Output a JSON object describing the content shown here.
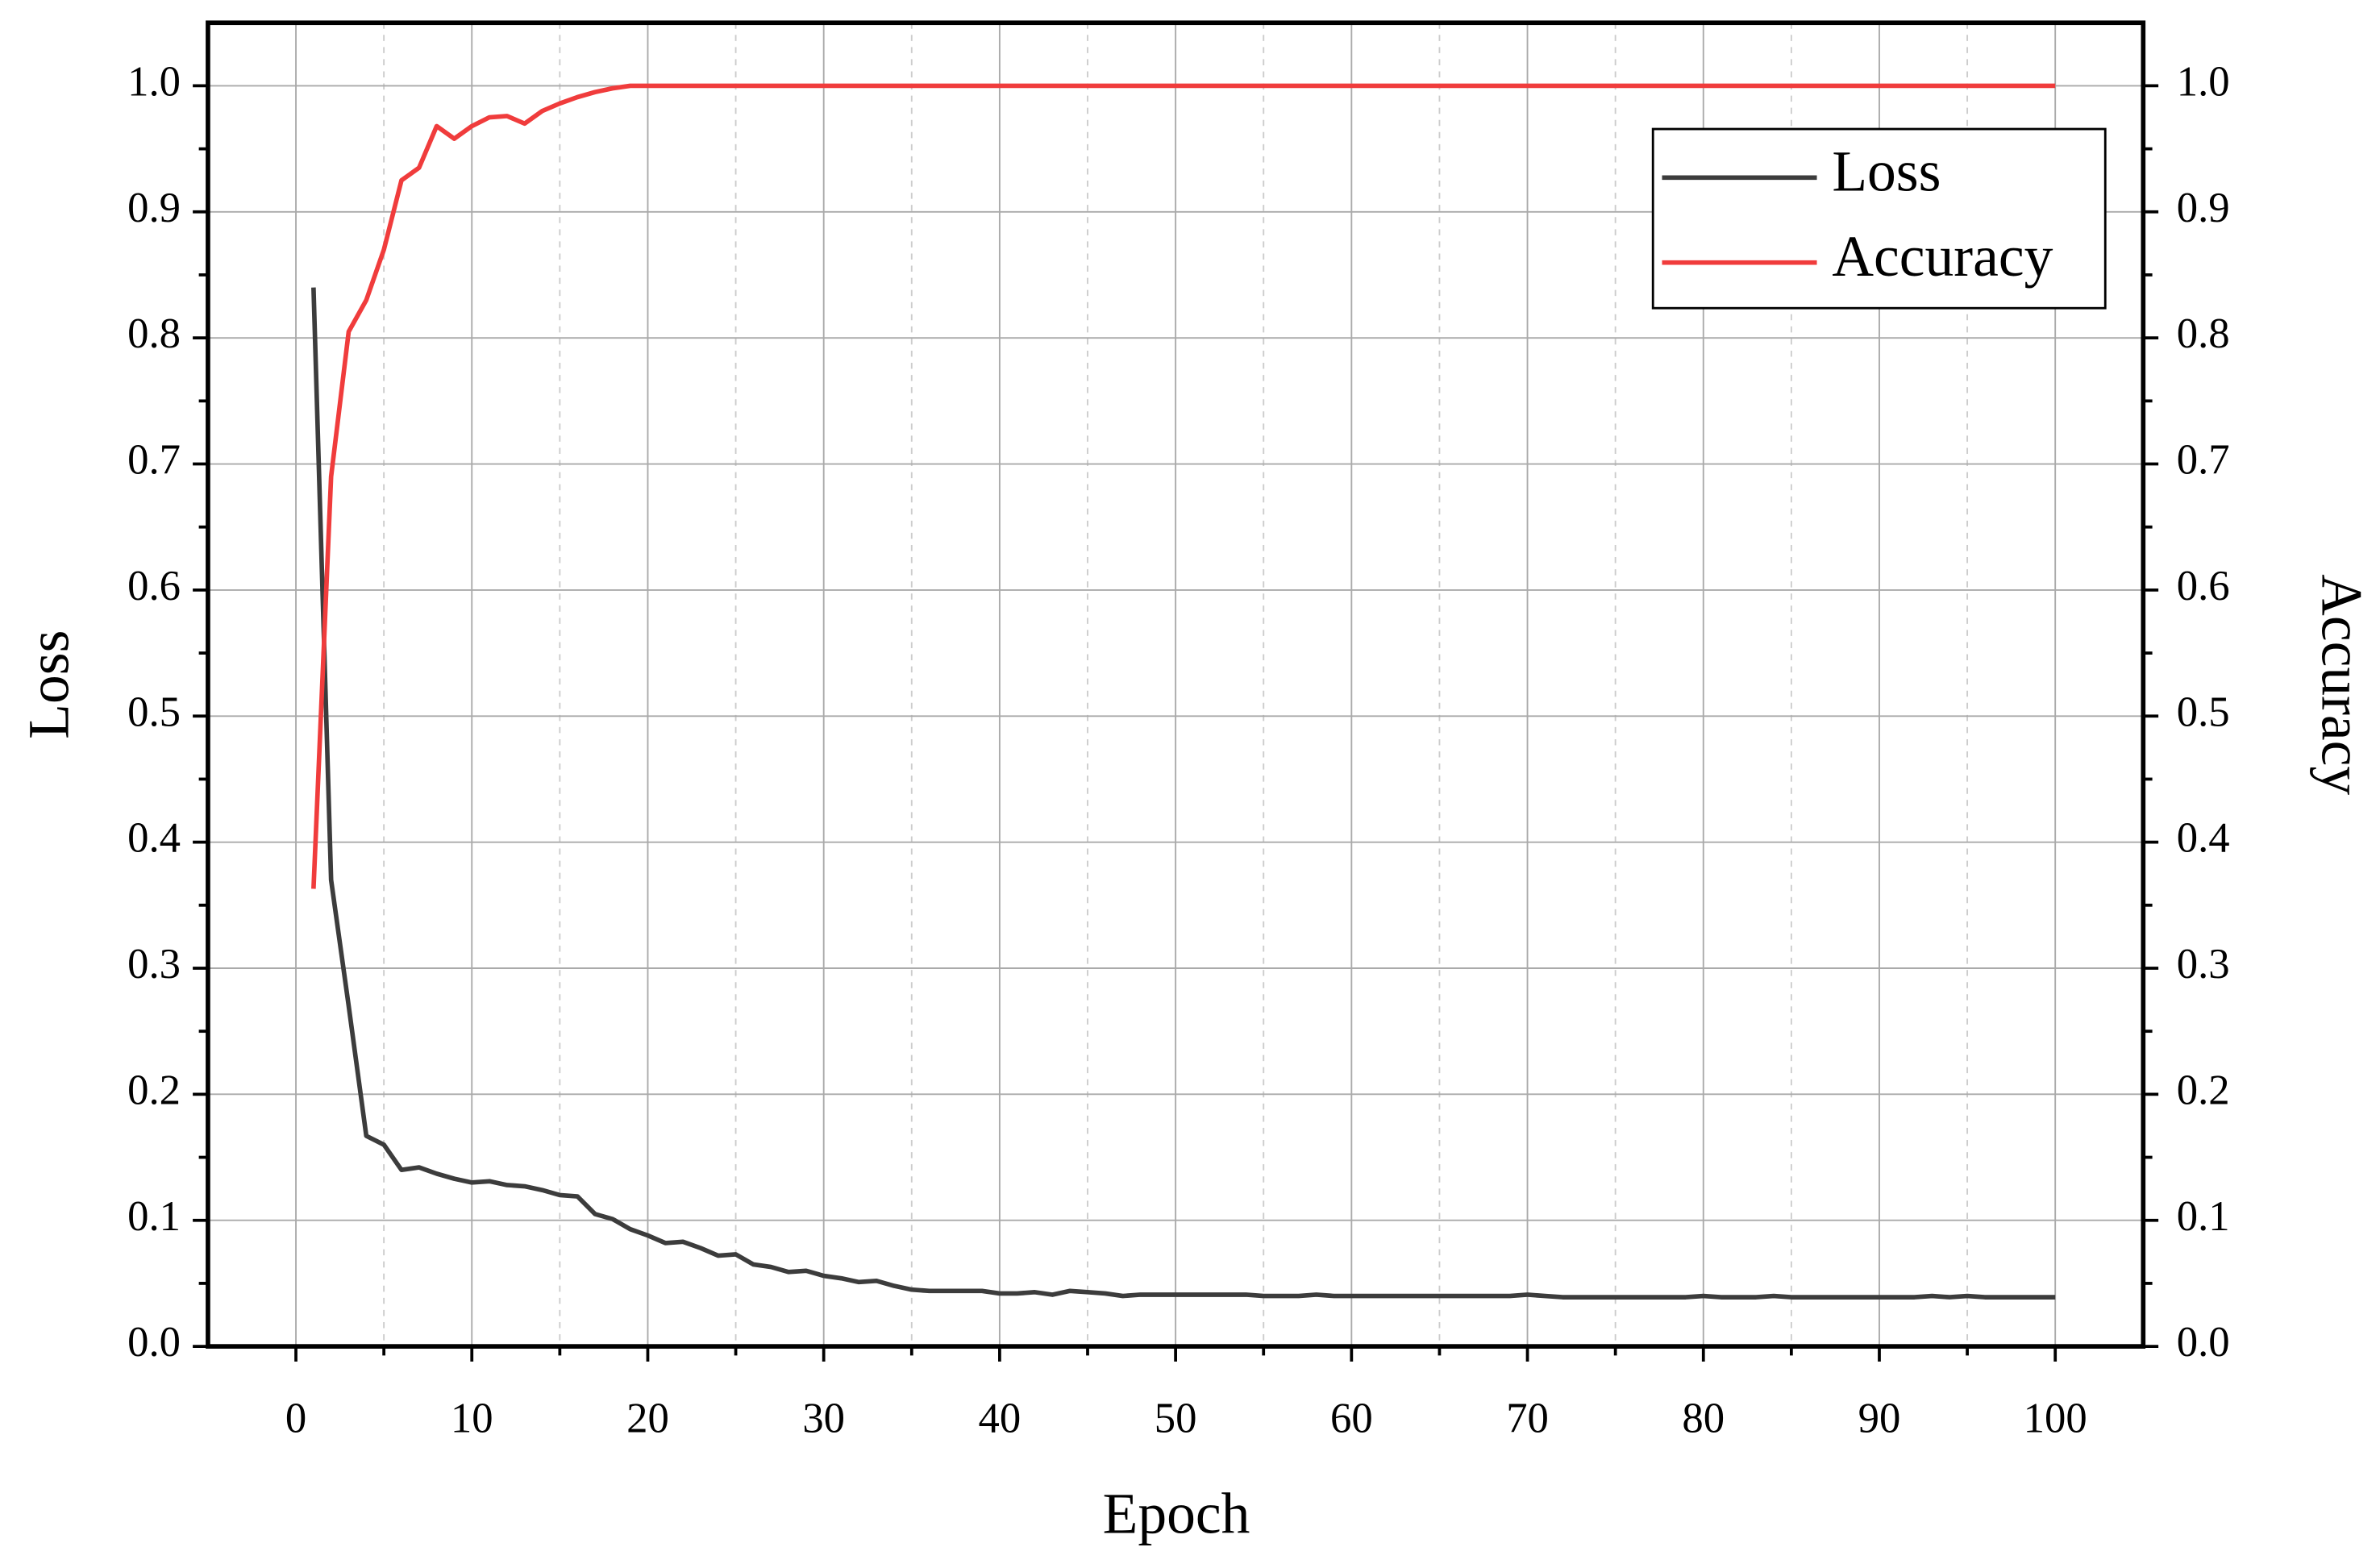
{
  "chart_data": {
    "type": "line",
    "x_label": "Epoch",
    "y_label": "Loss",
    "y2_label": "Accuracy",
    "x": [
      1,
      2,
      3,
      4,
      5,
      6,
      7,
      8,
      9,
      10,
      11,
      12,
      13,
      14,
      15,
      16,
      17,
      18,
      19,
      20,
      21,
      22,
      23,
      24,
      25,
      26,
      27,
      28,
      29,
      30,
      31,
      32,
      33,
      34,
      35,
      36,
      37,
      38,
      39,
      40,
      41,
      42,
      43,
      44,
      45,
      46,
      47,
      48,
      49,
      50,
      51,
      52,
      53,
      54,
      55,
      56,
      57,
      58,
      59,
      60,
      61,
      62,
      63,
      64,
      65,
      66,
      67,
      68,
      69,
      70,
      71,
      72,
      73,
      74,
      75,
      76,
      77,
      78,
      79,
      80,
      81,
      82,
      83,
      84,
      85,
      86,
      87,
      88,
      89,
      90,
      91,
      92,
      93,
      94,
      95,
      96,
      97,
      98,
      99,
      100
    ],
    "series": [
      {
        "name": "Loss",
        "color": "#3c3c3c",
        "axis": "y",
        "values": [
          0.84,
          0.37,
          0.27,
          0.167,
          0.16,
          0.14,
          0.142,
          0.137,
          0.133,
          0.13,
          0.131,
          0.128,
          0.127,
          0.124,
          0.12,
          0.119,
          0.105,
          0.101,
          0.093,
          0.088,
          0.082,
          0.083,
          0.078,
          0.072,
          0.073,
          0.065,
          0.063,
          0.059,
          0.06,
          0.056,
          0.054,
          0.051,
          0.052,
          0.048,
          0.045,
          0.044,
          0.044,
          0.044,
          0.044,
          0.042,
          0.042,
          0.043,
          0.041,
          0.044,
          0.043,
          0.042,
          0.04,
          0.041,
          0.041,
          0.041,
          0.041,
          0.041,
          0.041,
          0.041,
          0.04,
          0.04,
          0.04,
          0.041,
          0.04,
          0.04,
          0.04,
          0.04,
          0.04,
          0.04,
          0.04,
          0.04,
          0.04,
          0.04,
          0.04,
          0.041,
          0.04,
          0.039,
          0.039,
          0.039,
          0.039,
          0.039,
          0.039,
          0.039,
          0.039,
          0.04,
          0.039,
          0.039,
          0.039,
          0.04,
          0.039,
          0.039,
          0.039,
          0.039,
          0.039,
          0.039,
          0.039,
          0.039,
          0.04,
          0.039,
          0.04,
          0.039,
          0.039,
          0.039,
          0.039,
          0.039
        ]
      },
      {
        "name": "Accuracy",
        "color": "#f03c3c",
        "axis": "y2",
        "values": [
          0.363,
          0.69,
          0.805,
          0.83,
          0.87,
          0.925,
          0.935,
          0.968,
          0.958,
          0.968,
          0.975,
          0.976,
          0.97,
          0.98,
          0.986,
          0.991,
          0.995,
          0.998,
          1.0,
          1.0,
          1.0,
          1.0,
          1.0,
          1.0,
          1.0,
          1.0,
          1.0,
          1.0,
          1.0,
          1.0,
          1.0,
          1.0,
          1.0,
          1.0,
          1.0,
          1.0,
          1.0,
          1.0,
          1.0,
          1.0,
          1.0,
          1.0,
          1.0,
          1.0,
          1.0,
          1.0,
          1.0,
          1.0,
          1.0,
          1.0,
          1.0,
          1.0,
          1.0,
          1.0,
          1.0,
          1.0,
          1.0,
          1.0,
          1.0,
          1.0,
          1.0,
          1.0,
          1.0,
          1.0,
          1.0,
          1.0,
          1.0,
          1.0,
          1.0,
          1.0,
          1.0,
          1.0,
          1.0,
          1.0,
          1.0,
          1.0,
          1.0,
          1.0,
          1.0,
          1.0,
          1.0,
          1.0,
          1.0,
          1.0,
          1.0,
          1.0,
          1.0,
          1.0,
          1.0,
          1.0,
          1.0,
          1.0,
          1.0,
          1.0,
          1.0,
          1.0,
          1.0,
          1.0,
          1.0,
          1.0
        ]
      }
    ],
    "xlim": [
      -5,
      105
    ],
    "ylim": [
      0,
      1.05
    ],
    "y2lim": [
      0,
      1.05
    ],
    "xticks": [
      0,
      10,
      20,
      30,
      40,
      50,
      60,
      70,
      80,
      90,
      100
    ],
    "xminorticks": [
      5,
      15,
      25,
      35,
      45,
      55,
      65,
      75,
      85,
      95
    ],
    "yticks": [
      {
        "value": 0,
        "label": "0.0"
      },
      0.1,
      0.2,
      0.3,
      0.4,
      0.5,
      0.6,
      0.7,
      0.8,
      0.9,
      {
        "value": 1,
        "label": "1.0"
      }
    ],
    "y2ticks": [
      {
        "value": 0,
        "label": "0.0"
      },
      0.1,
      0.2,
      0.3,
      0.4,
      0.5,
      0.6,
      0.7,
      0.8,
      0.9,
      {
        "value": 1,
        "label": "1.0"
      }
    ],
    "yminorticks": [
      0.05,
      0.15,
      0.25,
      0.35,
      0.45,
      0.55,
      0.65,
      0.75,
      0.85,
      0.95
    ],
    "grid": true,
    "legend": "upper right"
  }
}
